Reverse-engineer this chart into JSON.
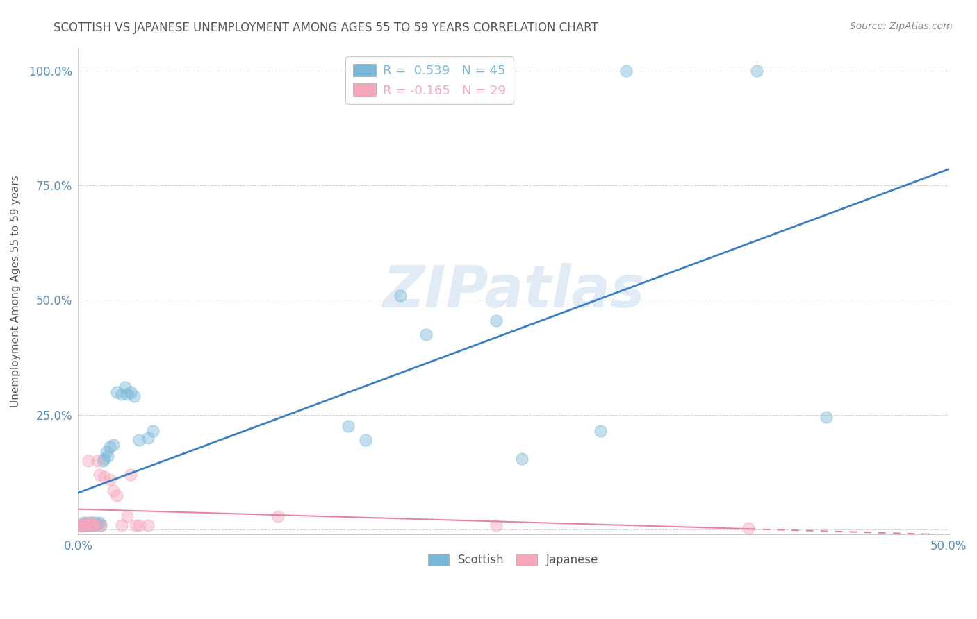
{
  "title": "SCOTTISH VS JAPANESE UNEMPLOYMENT AMONG AGES 55 TO 59 YEARS CORRELATION CHART",
  "source": "Source: ZipAtlas.com",
  "ylabel": "Unemployment Among Ages 55 to 59 years",
  "xlim": [
    0.0,
    0.5
  ],
  "ylim": [
    -0.01,
    1.05
  ],
  "scottish_color": "#7ab8d9",
  "japanese_color": "#f4a7bb",
  "scottish_line_color": "#3a7fc1",
  "japanese_line_color": "#e8829a",
  "scottish_R": 0.539,
  "scottish_N": 45,
  "japanese_R": -0.165,
  "japanese_N": 29,
  "scottish_x": [
    0.001,
    0.002,
    0.003,
    0.003,
    0.004,
    0.004,
    0.005,
    0.005,
    0.006,
    0.006,
    0.007,
    0.007,
    0.008,
    0.008,
    0.009,
    0.01,
    0.01,
    0.011,
    0.012,
    0.013,
    0.014,
    0.015,
    0.016,
    0.017,
    0.018,
    0.02,
    0.022,
    0.025,
    0.027,
    0.028,
    0.03,
    0.032,
    0.035,
    0.04,
    0.043,
    0.155,
    0.165,
    0.185,
    0.2,
    0.24,
    0.255,
    0.3,
    0.315,
    0.39,
    0.43
  ],
  "scottish_y": [
    0.01,
    0.01,
    0.01,
    0.015,
    0.01,
    0.012,
    0.01,
    0.012,
    0.01,
    0.015,
    0.01,
    0.012,
    0.01,
    0.015,
    0.012,
    0.01,
    0.015,
    0.012,
    0.015,
    0.01,
    0.15,
    0.155,
    0.17,
    0.16,
    0.18,
    0.185,
    0.3,
    0.295,
    0.31,
    0.295,
    0.3,
    0.29,
    0.195,
    0.2,
    0.215,
    0.225,
    0.195,
    0.51,
    0.425,
    0.455,
    0.155,
    0.215,
    1.0,
    1.0,
    0.245
  ],
  "japanese_x": [
    0.001,
    0.002,
    0.003,
    0.004,
    0.004,
    0.005,
    0.006,
    0.006,
    0.007,
    0.008,
    0.008,
    0.009,
    0.01,
    0.011,
    0.012,
    0.013,
    0.015,
    0.018,
    0.02,
    0.022,
    0.025,
    0.028,
    0.03,
    0.033,
    0.035,
    0.04,
    0.115,
    0.24,
    0.385
  ],
  "japanese_y": [
    0.01,
    0.008,
    0.01,
    0.01,
    0.015,
    0.01,
    0.012,
    0.15,
    0.01,
    0.01,
    0.015,
    0.012,
    0.01,
    0.15,
    0.12,
    0.01,
    0.115,
    0.11,
    0.085,
    0.075,
    0.01,
    0.03,
    0.12,
    0.01,
    0.01,
    0.01,
    0.03,
    0.01,
    0.003
  ],
  "watermark_text": "ZIPatlas",
  "background_color": "#ffffff",
  "grid_color": "#cccccc",
  "axis_color": "#cccccc",
  "label_color": "#5b8db8",
  "title_color": "#555555",
  "source_color": "#888888",
  "ylabel_color": "#555555"
}
